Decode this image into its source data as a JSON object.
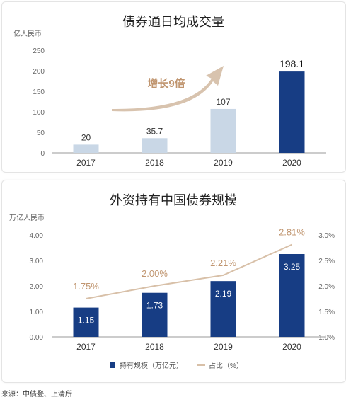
{
  "charts": {
    "volume": {
      "title": "债券通日均成交量",
      "unit_label": "亿人民币",
      "growth_label": "增长9倍",
      "colors": {
        "bar": "#c9d7e6",
        "highlight": "#173d84",
        "arrow": "#d8c3ae",
        "growth_text": "#c0956f",
        "axis": "#999999"
      }
    },
    "holdings": {
      "title": "外资持有中国债券规模",
      "left_unit_label": "万亿人民币",
      "legend_bar": "持有规模（万亿元）",
      "legend_line": "占比（%）",
      "colors": {
        "bar": "#173d84",
        "line": "#d8c0a8",
        "line_label": "#c0956f"
      }
    }
  },
  "chart_data": [
    {
      "type": "bar",
      "title": "债券通日均成交量",
      "ylabel": "亿人民币",
      "categories": [
        "2017",
        "2018",
        "2019",
        "2020"
      ],
      "values": [
        20,
        35.7,
        107,
        198.1
      ],
      "value_labels": [
        "20",
        "35.7",
        "107",
        "198.1"
      ],
      "ylim": [
        0,
        250
      ],
      "yticks": [
        "0",
        "50",
        "100",
        "150",
        "200",
        "250"
      ],
      "grid": false
    },
    {
      "type": "bar",
      "title": "外资持有中国债券规模",
      "ylabel": "万亿人民币",
      "categories": [
        "2017",
        "2018",
        "2019",
        "2020"
      ],
      "ylim": [
        0,
        4
      ],
      "yticks": [
        "0.00",
        "1.00",
        "2.00",
        "3.00",
        "4.00"
      ],
      "y2lim": [
        1.0,
        3.0
      ],
      "y2ticks": [
        "1.0%",
        "1.5%",
        "2.0%",
        "2.5%",
        "3.0%"
      ],
      "legend_position": "bottom",
      "series": [
        {
          "name": "持有规模（万亿元）",
          "type": "bar",
          "values": [
            1.15,
            1.73,
            2.19,
            3.25
          ],
          "value_labels": [
            "1.15",
            "1.73",
            "2.19",
            "3.25"
          ]
        },
        {
          "name": "占比（%）",
          "type": "line",
          "axis": "right",
          "values": [
            1.75,
            2.0,
            2.21,
            2.81
          ],
          "value_labels": [
            "1.75%",
            "2.00%",
            "2.21%",
            "2.81%"
          ]
        }
      ]
    }
  ],
  "source": "来源：中债登、上清所"
}
